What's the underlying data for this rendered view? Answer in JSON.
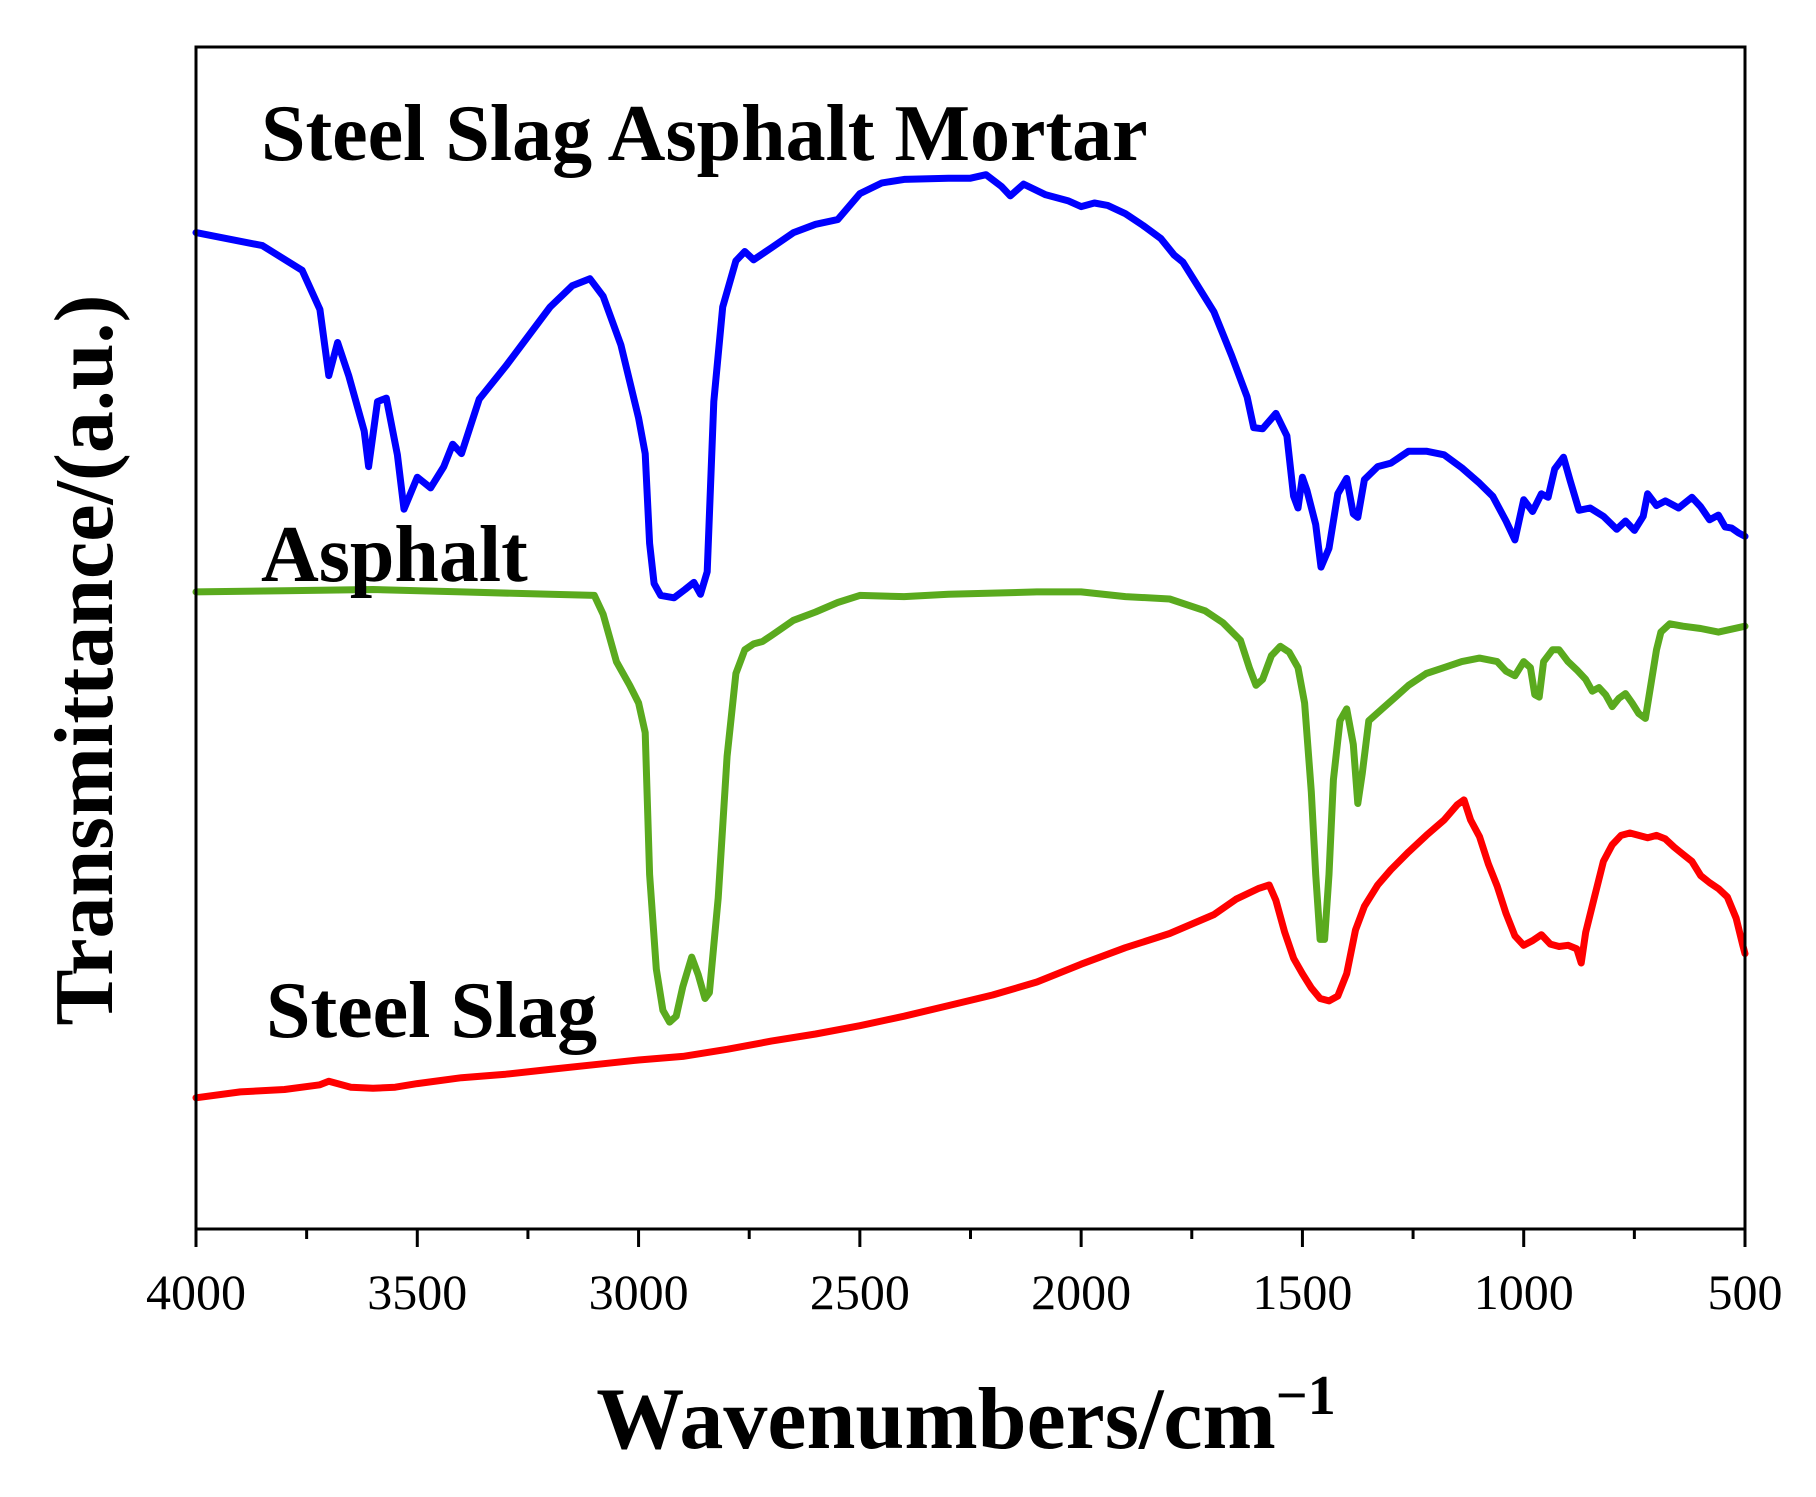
{
  "chart_data": {
    "type": "line",
    "xlabel": "Wavenumbers/cm",
    "xlabel_superscript": "−1",
    "ylabel": "Transmittance/(a.u.)",
    "xlim": [
      4000,
      500
    ],
    "ylim": [
      0,
      100
    ],
    "x_inverted": true,
    "x_ticks": [
      4000,
      3500,
      3000,
      2500,
      2000,
      1500,
      1000,
      500
    ],
    "x_tick_labels": [
      "4000",
      "3500",
      "3000",
      "2500",
      "2000",
      "1500",
      "1000",
      "500"
    ],
    "y_ticks_shown": false,
    "series": [
      {
        "name": "Steel Slag Asphalt Mortar",
        "color": "#0000ff",
        "points": [
          [
            4000,
            84.3
          ],
          [
            3850,
            83.2
          ],
          [
            3760,
            81.1
          ],
          [
            3720,
            77.8
          ],
          [
            3700,
            72.2
          ],
          [
            3680,
            75.0
          ],
          [
            3655,
            72.2
          ],
          [
            3620,
            67.5
          ],
          [
            3610,
            64.5
          ],
          [
            3590,
            70.0
          ],
          [
            3570,
            70.3
          ],
          [
            3545,
            65.5
          ],
          [
            3530,
            60.9
          ],
          [
            3500,
            63.6
          ],
          [
            3470,
            62.7
          ],
          [
            3440,
            64.5
          ],
          [
            3420,
            66.4
          ],
          [
            3400,
            65.6
          ],
          [
            3360,
            70.2
          ],
          [
            3300,
            73.0
          ],
          [
            3250,
            75.5
          ],
          [
            3200,
            78.0
          ],
          [
            3150,
            79.8
          ],
          [
            3110,
            80.4
          ],
          [
            3080,
            78.9
          ],
          [
            3040,
            74.8
          ],
          [
            3000,
            68.6
          ],
          [
            2985,
            65.6
          ],
          [
            2975,
            58.0
          ],
          [
            2965,
            54.6
          ],
          [
            2950,
            53.6
          ],
          [
            2920,
            53.4
          ],
          [
            2895,
            54.1
          ],
          [
            2875,
            54.7
          ],
          [
            2860,
            53.7
          ],
          [
            2845,
            55.6
          ],
          [
            2830,
            70.0
          ],
          [
            2810,
            78.0
          ],
          [
            2780,
            81.9
          ],
          [
            2760,
            82.7
          ],
          [
            2740,
            82.0
          ],
          [
            2700,
            83.0
          ],
          [
            2650,
            84.3
          ],
          [
            2600,
            85.0
          ],
          [
            2550,
            85.4
          ],
          [
            2500,
            87.6
          ],
          [
            2450,
            88.5
          ],
          [
            2400,
            88.8
          ],
          [
            2300,
            88.9
          ],
          [
            2250,
            88.9
          ],
          [
            2215,
            89.2
          ],
          [
            2180,
            88.2
          ],
          [
            2160,
            87.4
          ],
          [
            2130,
            88.4
          ],
          [
            2080,
            87.5
          ],
          [
            2030,
            87.0
          ],
          [
            2000,
            86.5
          ],
          [
            1970,
            86.8
          ],
          [
            1940,
            86.6
          ],
          [
            1900,
            85.9
          ],
          [
            1860,
            84.9
          ],
          [
            1820,
            83.8
          ],
          [
            1790,
            82.4
          ],
          [
            1770,
            81.8
          ],
          [
            1740,
            80.0
          ],
          [
            1700,
            77.6
          ],
          [
            1660,
            73.9
          ],
          [
            1625,
            70.4
          ],
          [
            1610,
            67.8
          ],
          [
            1590,
            67.7
          ],
          [
            1560,
            69.0
          ],
          [
            1535,
            67.1
          ],
          [
            1520,
            62.0
          ],
          [
            1510,
            61.0
          ],
          [
            1500,
            63.6
          ],
          [
            1490,
            62.5
          ],
          [
            1470,
            59.6
          ],
          [
            1458,
            56.0
          ],
          [
            1440,
            57.6
          ],
          [
            1420,
            62.2
          ],
          [
            1400,
            63.5
          ],
          [
            1385,
            60.5
          ],
          [
            1375,
            60.2
          ],
          [
            1360,
            63.4
          ],
          [
            1330,
            64.5
          ],
          [
            1300,
            64.8
          ],
          [
            1260,
            65.8
          ],
          [
            1220,
            65.8
          ],
          [
            1180,
            65.5
          ],
          [
            1140,
            64.4
          ],
          [
            1100,
            63.1
          ],
          [
            1070,
            62.0
          ],
          [
            1040,
            59.9
          ],
          [
            1020,
            58.3
          ],
          [
            1000,
            61.7
          ],
          [
            980,
            60.7
          ],
          [
            960,
            62.2
          ],
          [
            945,
            61.9
          ],
          [
            930,
            64.3
          ],
          [
            910,
            65.3
          ],
          [
            895,
            63.3
          ],
          [
            875,
            60.8
          ],
          [
            850,
            61.0
          ],
          [
            820,
            60.3
          ],
          [
            790,
            59.2
          ],
          [
            770,
            59.9
          ],
          [
            750,
            59.1
          ],
          [
            730,
            60.3
          ],
          [
            720,
            62.2
          ],
          [
            700,
            61.2
          ],
          [
            680,
            61.6
          ],
          [
            650,
            61.0
          ],
          [
            620,
            61.9
          ],
          [
            600,
            61.1
          ],
          [
            580,
            60.0
          ],
          [
            560,
            60.4
          ],
          [
            545,
            59.4
          ],
          [
            530,
            59.3
          ],
          [
            515,
            58.9
          ],
          [
            500,
            58.6
          ]
        ]
      },
      {
        "name": "Asphalt",
        "color": "#5aaa1e",
        "points": [
          [
            4000,
            53.9
          ],
          [
            3800,
            54.0
          ],
          [
            3600,
            54.1
          ],
          [
            3400,
            53.9
          ],
          [
            3200,
            53.7
          ],
          [
            3100,
            53.6
          ],
          [
            3080,
            52.0
          ],
          [
            3050,
            48.0
          ],
          [
            3020,
            46.0
          ],
          [
            3000,
            44.5
          ],
          [
            2985,
            42.0
          ],
          [
            2975,
            30.0
          ],
          [
            2960,
            22.0
          ],
          [
            2945,
            18.5
          ],
          [
            2930,
            17.5
          ],
          [
            2915,
            18.0
          ],
          [
            2900,
            20.5
          ],
          [
            2880,
            23.0
          ],
          [
            2865,
            21.5
          ],
          [
            2850,
            19.5
          ],
          [
            2840,
            20.0
          ],
          [
            2820,
            28.0
          ],
          [
            2800,
            40.0
          ],
          [
            2780,
            47.0
          ],
          [
            2760,
            49.0
          ],
          [
            2740,
            49.5
          ],
          [
            2720,
            49.7
          ],
          [
            2700,
            50.2
          ],
          [
            2650,
            51.5
          ],
          [
            2600,
            52.2
          ],
          [
            2550,
            53.0
          ],
          [
            2500,
            53.6
          ],
          [
            2400,
            53.5
          ],
          [
            2300,
            53.7
          ],
          [
            2200,
            53.8
          ],
          [
            2100,
            53.9
          ],
          [
            2000,
            53.9
          ],
          [
            1900,
            53.5
          ],
          [
            1800,
            53.3
          ],
          [
            1720,
            52.3
          ],
          [
            1680,
            51.3
          ],
          [
            1640,
            49.8
          ],
          [
            1620,
            47.5
          ],
          [
            1605,
            46.0
          ],
          [
            1590,
            46.5
          ],
          [
            1570,
            48.5
          ],
          [
            1550,
            49.3
          ],
          [
            1530,
            48.8
          ],
          [
            1510,
            47.5
          ],
          [
            1495,
            44.5
          ],
          [
            1480,
            37.0
          ],
          [
            1470,
            30.0
          ],
          [
            1460,
            24.5
          ],
          [
            1450,
            24.5
          ],
          [
            1440,
            30.0
          ],
          [
            1430,
            38.0
          ],
          [
            1415,
            43.0
          ],
          [
            1400,
            44.0
          ],
          [
            1385,
            41.0
          ],
          [
            1375,
            36.0
          ],
          [
            1365,
            38.5
          ],
          [
            1350,
            43.0
          ],
          [
            1320,
            44.0
          ],
          [
            1290,
            45.0
          ],
          [
            1260,
            46.0
          ],
          [
            1220,
            47.0
          ],
          [
            1180,
            47.5
          ],
          [
            1140,
            48.0
          ],
          [
            1100,
            48.3
          ],
          [
            1060,
            48.0
          ],
          [
            1040,
            47.2
          ],
          [
            1020,
            46.8
          ],
          [
            1000,
            48.0
          ],
          [
            985,
            47.5
          ],
          [
            975,
            45.2
          ],
          [
            965,
            45.0
          ],
          [
            955,
            48.0
          ],
          [
            935,
            49.0
          ],
          [
            920,
            49.0
          ],
          [
            900,
            48.0
          ],
          [
            880,
            47.3
          ],
          [
            860,
            46.5
          ],
          [
            845,
            45.5
          ],
          [
            830,
            45.8
          ],
          [
            815,
            45.2
          ],
          [
            800,
            44.2
          ],
          [
            785,
            44.9
          ],
          [
            770,
            45.3
          ],
          [
            755,
            44.5
          ],
          [
            740,
            43.6
          ],
          [
            725,
            43.2
          ],
          [
            715,
            45.5
          ],
          [
            700,
            49.0
          ],
          [
            690,
            50.5
          ],
          [
            670,
            51.2
          ],
          [
            640,
            51.0
          ],
          [
            600,
            50.8
          ],
          [
            560,
            50.5
          ],
          [
            500,
            51.0
          ]
        ]
      },
      {
        "name": "Steel Slag",
        "color": "#ff0000",
        "points": [
          [
            4000,
            11.1
          ],
          [
            3900,
            11.6
          ],
          [
            3800,
            11.8
          ],
          [
            3720,
            12.2
          ],
          [
            3700,
            12.5
          ],
          [
            3650,
            12.0
          ],
          [
            3600,
            11.9
          ],
          [
            3550,
            12.0
          ],
          [
            3500,
            12.3
          ],
          [
            3400,
            12.8
          ],
          [
            3300,
            13.1
          ],
          [
            3200,
            13.5
          ],
          [
            3100,
            13.9
          ],
          [
            3000,
            14.3
          ],
          [
            2900,
            14.6
          ],
          [
            2800,
            15.2
          ],
          [
            2700,
            15.9
          ],
          [
            2600,
            16.5
          ],
          [
            2500,
            17.2
          ],
          [
            2400,
            18.0
          ],
          [
            2300,
            18.9
          ],
          [
            2200,
            19.8
          ],
          [
            2100,
            20.9
          ],
          [
            2000,
            22.4
          ],
          [
            1900,
            23.8
          ],
          [
            1800,
            25.0
          ],
          [
            1700,
            26.6
          ],
          [
            1650,
            27.9
          ],
          [
            1600,
            28.8
          ],
          [
            1575,
            29.1
          ],
          [
            1560,
            27.8
          ],
          [
            1540,
            25.1
          ],
          [
            1520,
            22.9
          ],
          [
            1500,
            21.6
          ],
          [
            1480,
            20.4
          ],
          [
            1460,
            19.5
          ],
          [
            1440,
            19.3
          ],
          [
            1420,
            19.7
          ],
          [
            1400,
            21.6
          ],
          [
            1380,
            25.3
          ],
          [
            1360,
            27.3
          ],
          [
            1330,
            29.1
          ],
          [
            1300,
            30.4
          ],
          [
            1260,
            31.9
          ],
          [
            1220,
            33.3
          ],
          [
            1180,
            34.6
          ],
          [
            1150,
            35.9
          ],
          [
            1135,
            36.3
          ],
          [
            1120,
            34.6
          ],
          [
            1100,
            33.2
          ],
          [
            1080,
            30.9
          ],
          [
            1060,
            29.0
          ],
          [
            1040,
            26.7
          ],
          [
            1020,
            24.8
          ],
          [
            1000,
            24.0
          ],
          [
            980,
            24.4
          ],
          [
            960,
            24.9
          ],
          [
            940,
            24.1
          ],
          [
            920,
            23.9
          ],
          [
            900,
            24.0
          ],
          [
            880,
            23.7
          ],
          [
            870,
            22.5
          ],
          [
            860,
            25.1
          ],
          [
            840,
            28.1
          ],
          [
            820,
            31.1
          ],
          [
            800,
            32.5
          ],
          [
            780,
            33.3
          ],
          [
            760,
            33.5
          ],
          [
            740,
            33.3
          ],
          [
            720,
            33.1
          ],
          [
            700,
            33.3
          ],
          [
            680,
            33.0
          ],
          [
            660,
            32.3
          ],
          [
            640,
            31.7
          ],
          [
            620,
            31.1
          ],
          [
            600,
            29.9
          ],
          [
            580,
            29.3
          ],
          [
            560,
            28.8
          ],
          [
            540,
            28.1
          ],
          [
            520,
            26.3
          ],
          [
            505,
            24.0
          ],
          [
            500,
            23.3
          ]
        ]
      }
    ]
  }
}
